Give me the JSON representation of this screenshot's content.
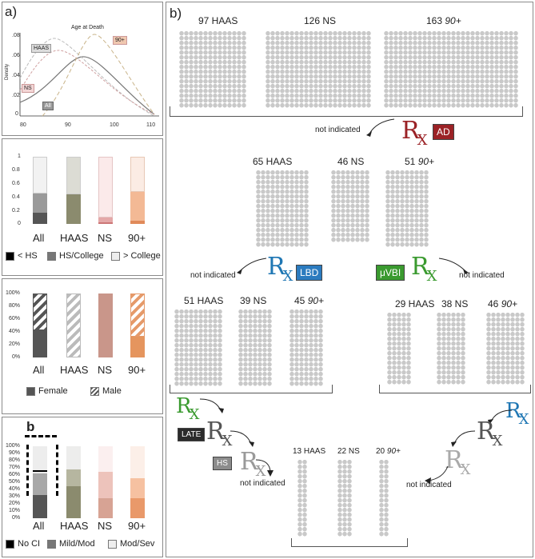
{
  "panel_a": {
    "label": "a)",
    "title": "Age at Death",
    "ylabel": "Density",
    "yticks": [
      ".08",
      ".06",
      ".04",
      ".02",
      "0"
    ],
    "xticks": [
      "80",
      "90",
      "100",
      "110"
    ],
    "tags": {
      "haas": "HAAS",
      "ninety": "90+",
      "ns": "NS",
      "all": "All"
    }
  },
  "chart_data": [
    {
      "type": "line",
      "title": "Age at Death",
      "xlabel": "",
      "ylabel": "Density",
      "x_range": [
        80,
        110
      ],
      "y_range": [
        0,
        0.08
      ],
      "series": [
        {
          "name": "All",
          "peak_x": 93,
          "peak_y": 0.062
        },
        {
          "name": "HAAS",
          "peak_x": 89,
          "peak_y": 0.075
        },
        {
          "name": "NS",
          "peak_x": 89,
          "peak_y": 0.052
        },
        {
          "name": "90+",
          "peak_x": 97,
          "peak_y": 0.079
        }
      ]
    },
    {
      "type": "bar",
      "categories": [
        "All",
        "HAAS",
        "NS",
        "90+"
      ],
      "yticks": [
        "1",
        "0.8",
        "0.6",
        "0.4",
        "0.2",
        "0"
      ],
      "series": [
        {
          "name": "< HS",
          "values": [
            0.17,
            0.0,
            0.02,
            0.05
          ]
        },
        {
          "name": "HS/College",
          "values": [
            0.28,
            0.44,
            0.08,
            0.42
          ]
        },
        {
          "name": "> College",
          "values": [
            0.55,
            0.56,
            0.9,
            0.53
          ]
        }
      ]
    },
    {
      "type": "bar",
      "categories": [
        "All",
        "HAAS",
        "NS",
        "90+"
      ],
      "yticks": [
        "100%",
        "80%",
        "60%",
        "40%",
        "20%",
        "0%"
      ],
      "series": [
        {
          "name": "Female",
          "values": [
            43,
            0,
            100,
            33
          ]
        },
        {
          "name": "Male",
          "values": [
            57,
            100,
            0,
            67
          ]
        }
      ]
    },
    {
      "type": "bar",
      "categories": [
        "All",
        "HAAS",
        "NS",
        "90+"
      ],
      "yticks": [
        "100%",
        "90%",
        "80%",
        "70%",
        "60%",
        "50%",
        "40%",
        "30%",
        "20%",
        "10%",
        "0%"
      ],
      "series": [
        {
          "name": "No CI",
          "values": [
            32,
            44,
            28,
            28
          ]
        },
        {
          "name": "Mild/Mod",
          "values": [
            30,
            24,
            36,
            28
          ]
        },
        {
          "name": "Mod/Sev",
          "values": [
            38,
            32,
            36,
            44
          ]
        }
      ]
    }
  ],
  "edu": {
    "categories": [
      "All",
      "HAAS",
      "NS",
      "90+"
    ],
    "legend": [
      "< HS",
      "HS/College",
      "> College"
    ]
  },
  "sex": {
    "categories": [
      "All",
      "HAAS",
      "NS",
      "90+"
    ],
    "legend": [
      "Female",
      "Male"
    ]
  },
  "cog": {
    "label": "b",
    "categories": [
      "All",
      "HAAS",
      "NS",
      "90+"
    ],
    "legend": [
      "No CI",
      "Mild/Mod",
      "Mod/Sev"
    ]
  },
  "panel_b": {
    "label": "b)",
    "top": {
      "haas": "97 HAAS",
      "ns": "126 NS",
      "ninety_num": "163",
      "ninety_tag": "90+"
    },
    "ad": {
      "not_indicated": "not indicated",
      "rx": "R",
      "rx_sub": "X",
      "tag": "AD"
    },
    "mid": {
      "haas": "65 HAAS",
      "ns": "46 NS",
      "ninety_num": "51",
      "ninety_tag": "90+"
    },
    "lbd": {
      "not_indicated": "not indicated",
      "tag": "LBD"
    },
    "mvbi": {
      "not_indicated": "not indicated",
      "tag": "μVBI"
    },
    "left": {
      "haas": "51 HAAS",
      "ns": "39 NS",
      "ninety_num": "45",
      "ninety_tag": "90+"
    },
    "right": {
      "haas": "29 HAAS",
      "ns": "38 NS",
      "ninety_num": "46",
      "ninety_tag": "90+"
    },
    "late": {
      "tag": "LATE"
    },
    "hs": {
      "tag": "HS",
      "not_indicated": "not indicated"
    },
    "right_bottom": {
      "not_indicated": "not indicated"
    },
    "bottom": {
      "haas": "13 HAAS",
      "ns": "22 NS",
      "ninety_num": "20",
      "ninety_tag": "90+"
    }
  },
  "colors": {
    "ad": "#9b2226",
    "lbd": "#1f77b4",
    "mvbi": "#3a9a2f",
    "late": "#2b2b2b",
    "hs": "#8c8c8c"
  }
}
